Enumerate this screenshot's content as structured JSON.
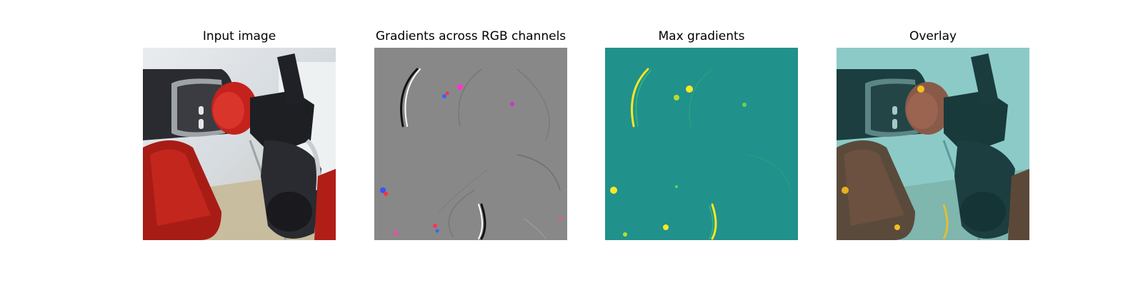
{
  "panels": [
    {
      "title": "Input image",
      "image": "robot-arm-photo"
    },
    {
      "title": "Gradients across RGB channels",
      "image": "rgb-gradient-map"
    },
    {
      "title": "Max gradients",
      "image": "max-gradient-heatmap"
    },
    {
      "title": "Overlay",
      "image": "overlay-heatmap-on-photo"
    }
  ],
  "colors": {
    "robot_red": "#b8201a",
    "robot_black": "#2a2b30",
    "gradient_gray": "#888888",
    "heatmap_teal": "#21918c",
    "heatmap_yellow": "#fde725",
    "overlay_teal": "#8ccac8"
  }
}
